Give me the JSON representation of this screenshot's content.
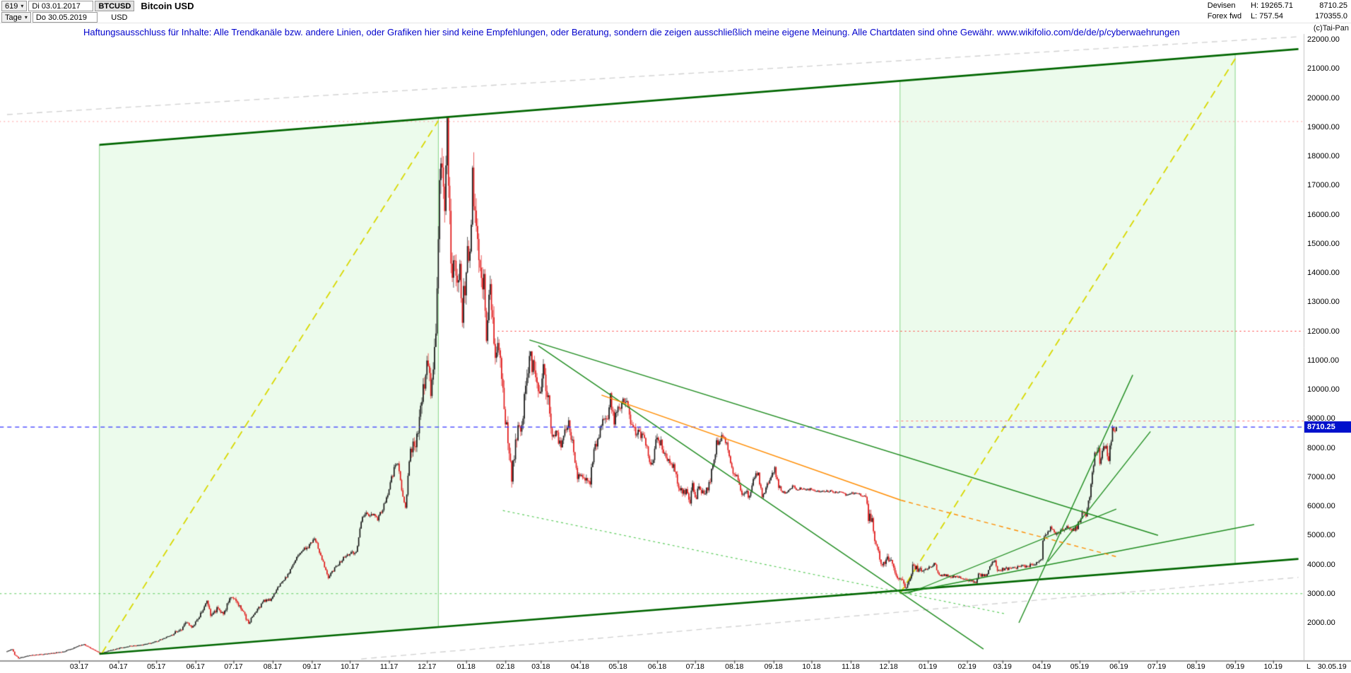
{
  "header": {
    "bar_number": "619",
    "dropdown_arrow": "▾",
    "date_from": "Di 03.01.2017",
    "symbol": "BTCUSD",
    "title": "Bitcoin USD",
    "period": "Tage",
    "date_to": "Do 30.05.2019",
    "currency": "USD",
    "right": {
      "market": "Devisen",
      "high": "H: 19265.71",
      "last": "8710.25",
      "feed": "Forex fwd",
      "low": "L: 757.54",
      "volume": "170355.0"
    },
    "copyright": "(c)Tai-Pan"
  },
  "disclaimer": "Haftungsausschluss für Inhalte: Alle Trendkanäle bzw. andere Linien, oder Grafiken hier sind keine Empfehlungen, oder Beratung, sondern die zeigen ausschließlich meine eigene Meinung. Alle Chartdaten sind ohne Gewähr.  www.wikifolio.com/de/de/p/cyberwaehrungen",
  "chart_data": {
    "type": "candlestick",
    "symbol": "BTCUSD",
    "title": "Bitcoin USD",
    "timeframe": "Tage",
    "start_date": "03.01.2017",
    "end_date": "30.05.2019",
    "high": 19265.71,
    "low": 757.54,
    "last": 8710.25,
    "last_price_label": "8710.25",
    "last_label": "L",
    "last_date": "30.05.19",
    "days_total": 877,
    "ylim": [
      757,
      22600
    ],
    "y_ticks": [
      "22000.00",
      "21000.00",
      "20000.00",
      "19000.00",
      "18000.00",
      "17000.00",
      "16000.00",
      "15000.00",
      "14000.00",
      "13000.00",
      "12000.00",
      "11000.00",
      "10000.00",
      "9000.00",
      "8000.00",
      "7000.00",
      "6000.00",
      "5000.00",
      "4000.00",
      "3000.00",
      "2000.00"
    ],
    "x_ticks": [
      {
        "label": "03.17",
        "day": 57
      },
      {
        "label": "04.17",
        "day": 88
      },
      {
        "label": "05.17",
        "day": 118
      },
      {
        "label": "06.17",
        "day": 149
      },
      {
        "label": "07.17",
        "day": 179
      },
      {
        "label": "08.17",
        "day": 210
      },
      {
        "label": "09.17",
        "day": 241
      },
      {
        "label": "10.17",
        "day": 271
      },
      {
        "label": "11.17",
        "day": 302
      },
      {
        "label": "12.17",
        "day": 332
      },
      {
        "label": "01.18",
        "day": 363
      },
      {
        "label": "02.18",
        "day": 394
      },
      {
        "label": "03.18",
        "day": 422
      },
      {
        "label": "04.18",
        "day": 453
      },
      {
        "label": "05.18",
        "day": 483
      },
      {
        "label": "06.18",
        "day": 514
      },
      {
        "label": "07.18",
        "day": 544
      },
      {
        "label": "08.18",
        "day": 575
      },
      {
        "label": "09.18",
        "day": 606
      },
      {
        "label": "10.18",
        "day": 636
      },
      {
        "label": "11.18",
        "day": 667
      },
      {
        "label": "12.18",
        "day": 697
      },
      {
        "label": "01.19",
        "day": 728
      },
      {
        "label": "02.19",
        "day": 759
      },
      {
        "label": "03.19",
        "day": 787
      },
      {
        "label": "04.19",
        "day": 818
      },
      {
        "label": "05.19",
        "day": 848
      },
      {
        "label": "06.19",
        "day": 879
      },
      {
        "label": "07.19",
        "day": 909
      },
      {
        "label": "08.19",
        "day": 940
      },
      {
        "label": "09.19",
        "day": 971
      },
      {
        "label": "10.19",
        "day": 1001
      }
    ],
    "colors": {
      "up": "#151515",
      "down": "#e01515",
      "region_fill": "rgba(130,225,130,0.15)",
      "region_border": "#86d486",
      "axis": "#333333",
      "last_price_bg": "#0011cc"
    },
    "regions": [
      {
        "name": "bull-channel-2017",
        "from_day": 73,
        "to_day": 341,
        "top_from": 18390,
        "top_to": 19319,
        "bottom_from": 935,
        "bottom_to": 1855
      },
      {
        "name": "bull-channel-2019",
        "from_day": 706,
        "to_day": 971,
        "top_from": 20584,
        "top_to": 21502,
        "bottom_from": 3108,
        "bottom_to": 4018
      }
    ],
    "lines": [
      {
        "name": "gray-upper",
        "from": [
          0,
          19430
        ],
        "to": [
          1021,
          22100
        ],
        "color": "#cfcfcf",
        "width": 1.3,
        "dash": [
          8,
          6
        ],
        "under": true
      },
      {
        "name": "gray-lower",
        "from": [
          280,
          760
        ],
        "to": [
          1021,
          3560
        ],
        "color": "#cfcfcf",
        "width": 1.3,
        "dash": [
          8,
          6
        ],
        "under": true
      },
      {
        "name": "rally-2017",
        "from": [
          75,
          960
        ],
        "to": [
          341,
          19220
        ],
        "color": "#d8d800",
        "width": 1.8,
        "dash": [
          11,
          7
        ],
        "under": true
      },
      {
        "name": "rally-2019-projection",
        "from": [
          706,
          3006
        ],
        "to": [
          972,
          21410
        ],
        "color": "#d8d800",
        "width": 1.8,
        "dash": [
          11,
          7
        ],
        "under": true
      },
      {
        "name": "ath-resistance",
        "from": [
          -6,
          19190
        ],
        "to": [
          1025,
          19190
        ],
        "color": "#ff9999",
        "width": 1,
        "dash": [
          2,
          4
        ],
        "under": true
      },
      {
        "name": "support-3000",
        "from": [
          -6,
          3000
        ],
        "to": [
          1025,
          3000
        ],
        "color": "#5ecc5e",
        "width": 1.2,
        "dash": [
          3,
          4
        ],
        "under": true
      },
      {
        "name": "lows-connector",
        "from": [
          392,
          5850
        ],
        "to": [
          790,
          2300
        ],
        "color": "#5ecc5e",
        "width": 1.2,
        "dash": [
          3,
          4
        ],
        "under": true
      },
      {
        "name": "channel-top",
        "from": [
          73,
          18390
        ],
        "to": [
          1021,
          21675
        ],
        "color": "#006600",
        "width": 2.6
      },
      {
        "name": "channel-bottom",
        "from": [
          73,
          935
        ],
        "to": [
          1021,
          4190
        ],
        "color": "#006600",
        "width": 2.6
      },
      {
        "name": "resistance-12000",
        "from": [
          388,
          12000
        ],
        "to": [
          1025,
          12000
        ],
        "color": "#ff3333",
        "width": 1,
        "dash": [
          2,
          4
        ]
      },
      {
        "name": "resistance-8920",
        "from": [
          703,
          8920
        ],
        "to": [
          1025,
          8920
        ],
        "color": "#ff7777",
        "width": 1,
        "dash": [
          3,
          4
        ]
      },
      {
        "name": "last-price-line",
        "from": [
          -6,
          8710.25
        ],
        "to": [
          1025,
          8710.25
        ],
        "color": "#3333ff",
        "width": 1.2,
        "dash": [
          6,
          5
        ]
      },
      {
        "name": "downtrend-main",
        "from": [
          413,
          11700
        ],
        "to": [
          910,
          5000
        ],
        "color": "#1f8c1f",
        "width": 1.4
      },
      {
        "name": "downtrend-steep",
        "from": [
          420,
          11500
        ],
        "to": [
          772,
          1100
        ],
        "color": "#1f8c1f",
        "width": 1.4
      },
      {
        "name": "recovery-slow",
        "from": [
          707,
          3005
        ],
        "to": [
          986,
          5370
        ],
        "color": "#1f8c1f",
        "width": 1.4
      },
      {
        "name": "recovery-base",
        "from": [
          712,
          3000
        ],
        "to": [
          877,
          5900
        ],
        "color": "#1f8c1f",
        "width": 1.2
      },
      {
        "name": "recovery-steep",
        "from": [
          800,
          2000
        ],
        "to": [
          890,
          10500
        ],
        "color": "#1f8c1f",
        "width": 1.4
      },
      {
        "name": "recovery-mid",
        "from": [
          823,
          4100
        ],
        "to": [
          904,
          8560
        ],
        "color": "#1f8c1f",
        "width": 1.4
      },
      {
        "name": "orange-downtrend",
        "from": [
          470,
          9810
        ],
        "to": [
          707,
          6200
        ],
        "color": "#ff8c00",
        "width": 1.4
      },
      {
        "name": "orange-downtrend-ext",
        "from": [
          707,
          6200
        ],
        "to": [
          877,
          4270
        ],
        "color": "#ff8c00",
        "width": 1.4,
        "dash": [
          6,
          5
        ]
      }
    ],
    "anchors": [
      [
        0,
        1020
      ],
      [
        4,
        1100
      ],
      [
        6,
        905
      ],
      [
        9,
        790
      ],
      [
        13,
        830
      ],
      [
        20,
        895
      ],
      [
        31,
        930
      ],
      [
        45,
        1010
      ],
      [
        58,
        1230
      ],
      [
        61,
        1260
      ],
      [
        65,
        1150
      ],
      [
        74,
        950
      ],
      [
        82,
        1060
      ],
      [
        95,
        1190
      ],
      [
        105,
        1220
      ],
      [
        118,
        1360
      ],
      [
        128,
        1540
      ],
      [
        138,
        1780
      ],
      [
        141,
        2050
      ],
      [
        146,
        1830
      ],
      [
        152,
        2250
      ],
      [
        158,
        2720
      ],
      [
        161,
        2280
      ],
      [
        166,
        2460
      ],
      [
        171,
        2320
      ],
      [
        177,
        2900
      ],
      [
        184,
        2550
      ],
      [
        191,
        1990
      ],
      [
        196,
        2350
      ],
      [
        203,
        2760
      ],
      [
        209,
        2790
      ],
      [
        214,
        3210
      ],
      [
        222,
        3640
      ],
      [
        230,
        4330
      ],
      [
        240,
        4700
      ],
      [
        243,
        4950
      ],
      [
        249,
        4190
      ],
      [
        254,
        3550
      ],
      [
        260,
        3910
      ],
      [
        268,
        4340
      ],
      [
        276,
        4430
      ],
      [
        281,
        5680
      ],
      [
        288,
        5760
      ],
      [
        293,
        5520
      ],
      [
        299,
        6130
      ],
      [
        306,
        7260
      ],
      [
        309,
        7460
      ],
      [
        312,
        6480
      ],
      [
        315,
        5920
      ],
      [
        319,
        8070
      ],
      [
        324,
        8230
      ],
      [
        329,
        9920
      ],
      [
        333,
        11050
      ],
      [
        335,
        9860
      ],
      [
        339,
        11870
      ],
      [
        342,
        16850
      ],
      [
        344,
        17650
      ],
      [
        346,
        16350
      ],
      [
        348,
        19100
      ],
      [
        350,
        15750
      ],
      [
        352,
        13850
      ],
      [
        354,
        14650
      ],
      [
        356,
        13480
      ],
      [
        358,
        14430
      ],
      [
        360,
        12650
      ],
      [
        363,
        14150
      ],
      [
        366,
        15100
      ],
      [
        368,
        17080
      ],
      [
        371,
        15250
      ],
      [
        374,
        14350
      ],
      [
        377,
        13620
      ],
      [
        379,
        11650
      ],
      [
        382,
        13480
      ],
      [
        386,
        11250
      ],
      [
        389,
        11630
      ],
      [
        393,
        9150
      ],
      [
        396,
        8350
      ],
      [
        399,
        7050
      ],
      [
        401,
        7850
      ],
      [
        404,
        8620
      ],
      [
        407,
        8930
      ],
      [
        411,
        10250
      ],
      [
        413,
        11480
      ],
      [
        417,
        10450
      ],
      [
        421,
        9750
      ],
      [
        424,
        10950
      ],
      [
        427,
        9950
      ],
      [
        431,
        8550
      ],
      [
        435,
        8480
      ],
      [
        438,
        7950
      ],
      [
        441,
        8620
      ],
      [
        444,
        8930
      ],
      [
        447,
        8120
      ],
      [
        451,
        7050
      ],
      [
        454,
        6930
      ],
      [
        457,
        7020
      ],
      [
        461,
        6830
      ],
      [
        464,
        7990
      ],
      [
        467,
        8320
      ],
      [
        471,
        8930
      ],
      [
        474,
        8880
      ],
      [
        477,
        9680
      ],
      [
        480,
        8950
      ],
      [
        484,
        9320
      ],
      [
        487,
        9820
      ],
      [
        491,
        9350
      ],
      [
        494,
        8720
      ],
      [
        499,
        8510
      ],
      [
        504,
        8320
      ],
      [
        508,
        7520
      ],
      [
        511,
        7610
      ],
      [
        514,
        8480
      ],
      [
        517,
        8120
      ],
      [
        521,
        7620
      ],
      [
        524,
        7510
      ],
      [
        527,
        7370
      ],
      [
        531,
        6720
      ],
      [
        534,
        6420
      ],
      [
        537,
        6490
      ],
      [
        540,
        6120
      ],
      [
        542,
        6730
      ],
      [
        544,
        6250
      ],
      [
        547,
        6620
      ],
      [
        551,
        6390
      ],
      [
        555,
        6710
      ],
      [
        558,
        7380
      ],
      [
        561,
        8170
      ],
      [
        566,
        8390
      ],
      [
        569,
        8210
      ],
      [
        571,
        7760
      ],
      [
        574,
        7030
      ],
      [
        577,
        7040
      ],
      [
        581,
        6320
      ],
      [
        584,
        6560
      ],
      [
        587,
        6290
      ],
      [
        591,
        7030
      ],
      [
        594,
        7140
      ],
      [
        597,
        6230
      ],
      [
        601,
        6710
      ],
      [
        604,
        7040
      ],
      [
        607,
        7260
      ],
      [
        610,
        6720
      ],
      [
        613,
        6480
      ],
      [
        617,
        6460
      ],
      [
        621,
        6710
      ],
      [
        624,
        6590
      ],
      [
        628,
        6610
      ],
      [
        632,
        6560
      ],
      [
        636,
        6590
      ],
      [
        641,
        6510
      ],
      [
        646,
        6480
      ],
      [
        651,
        6540
      ],
      [
        656,
        6460
      ],
      [
        660,
        6490
      ],
      [
        664,
        6370
      ],
      [
        668,
        6450
      ],
      [
        672,
        6410
      ],
      [
        675,
        6390
      ],
      [
        679,
        6350
      ],
      [
        681,
        5620
      ],
      [
        684,
        5580
      ],
      [
        686,
        4870
      ],
      [
        689,
        4370
      ],
      [
        691,
        3920
      ],
      [
        694,
        4080
      ],
      [
        697,
        4230
      ],
      [
        700,
        3960
      ],
      [
        703,
        3560
      ],
      [
        707,
        3420
      ],
      [
        711,
        3230
      ],
      [
        714,
        3480
      ],
      [
        716,
        4040
      ],
      [
        719,
        3890
      ],
      [
        723,
        3760
      ],
      [
        728,
        3850
      ],
      [
        733,
        4040
      ],
      [
        737,
        3650
      ],
      [
        742,
        3620
      ],
      [
        747,
        3590
      ],
      [
        752,
        3560
      ],
      [
        757,
        3500
      ],
      [
        762,
        3460
      ],
      [
        766,
        3410
      ],
      [
        768,
        3640
      ],
      [
        772,
        3630
      ],
      [
        775,
        3650
      ],
      [
        777,
        3940
      ],
      [
        781,
        4140
      ],
      [
        783,
        3810
      ],
      [
        788,
        3840
      ],
      [
        793,
        3870
      ],
      [
        798,
        3890
      ],
      [
        803,
        3920
      ],
      [
        808,
        3970
      ],
      [
        813,
        4010
      ],
      [
        818,
        4140
      ],
      [
        819,
        4860
      ],
      [
        821,
        5040
      ],
      [
        825,
        5230
      ],
      [
        830,
        5060
      ],
      [
        834,
        5180
      ],
      [
        838,
        5290
      ],
      [
        842,
        5170
      ],
      [
        846,
        5280
      ],
      [
        850,
        5740
      ],
      [
        853,
        5690
      ],
      [
        856,
        6380
      ],
      [
        858,
        7210
      ],
      [
        860,
        7790
      ],
      [
        863,
        7940
      ],
      [
        864,
        7310
      ],
      [
        867,
        7990
      ],
      [
        869,
        7930
      ],
      [
        871,
        7680
      ],
      [
        874,
        8730
      ],
      [
        876,
        8560
      ],
      [
        877,
        8710.25
      ]
    ]
  }
}
